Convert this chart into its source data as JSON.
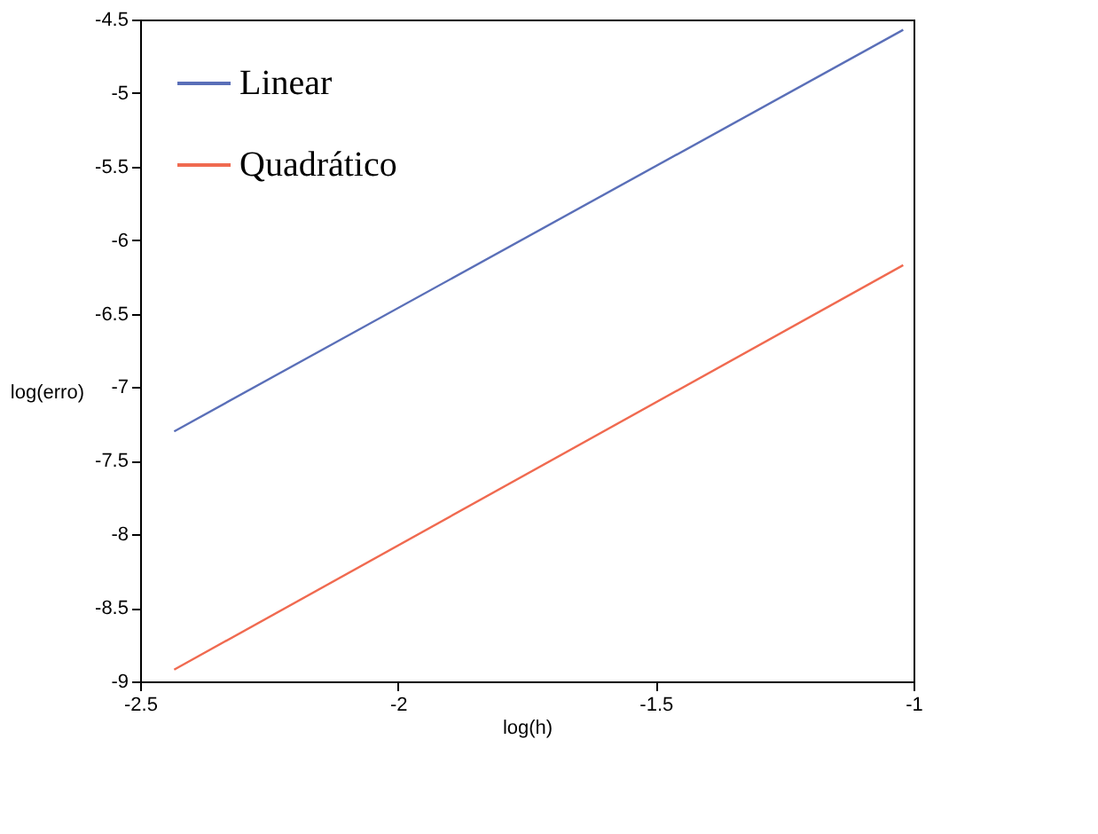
{
  "chart_data": {
    "type": "line",
    "xlabel": "log(h)",
    "ylabel": "log(erro)",
    "xlim": [
      -2.5,
      -1
    ],
    "xticks": [
      -2.5,
      -2,
      -1.5,
      -1
    ],
    "ylim": [
      -9,
      -4.5
    ],
    "yticks": [
      -9,
      -8.5,
      -8,
      -7.5,
      -7,
      -6.5,
      -6,
      -5.5,
      -5,
      -4.5
    ],
    "grid": false,
    "legend": "top left",
    "x": [
      -2.434,
      -1.02
    ],
    "marker": "none",
    "line_style": "solid",
    "series": [
      {
        "name": "Linear",
        "color": "#5a6fb8",
        "values": [
          -7.3,
          -4.57
        ]
      },
      {
        "name": "Quadrático",
        "color": "#f06a50",
        "values": [
          -8.92,
          -6.17
        ]
      }
    ]
  }
}
